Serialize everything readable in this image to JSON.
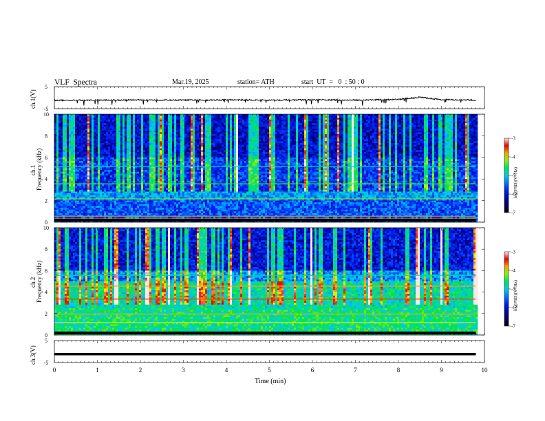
{
  "header": {
    "title": "VLF  Spectra",
    "date": "Mar.19, 2025",
    "station": "station= ATH",
    "start_ut": "start  UT  =   0  : 50 : 0"
  },
  "colors": {
    "low": "#000000",
    "blue": "#0000c0",
    "cyan": "#00c8ff",
    "green": "#00e000",
    "yellow": "#f0f000",
    "red": "#e00000",
    "pink": "#ffe0e0"
  },
  "chart_data": [
    {
      "type": "line",
      "ylabel": "ch.1(V)",
      "yticks": [
        "5",
        "-5"
      ],
      "ylim": [
        -5,
        5
      ],
      "x": [
        0,
        1,
        2,
        3,
        4,
        5,
        6,
        7,
        8,
        8.5,
        9,
        9.8
      ],
      "values": [
        -1.2,
        -1.1,
        -1.0,
        -1.1,
        -1.0,
        -1.1,
        -1.0,
        -1.1,
        -0.8,
        0.2,
        -0.9,
        -1.1
      ]
    },
    {
      "type": "heatmap",
      "ylabel_lines": [
        "ch.1",
        "Frequency (kHz)"
      ],
      "yticks": [
        "0",
        "2",
        "4",
        "6",
        "8",
        "10"
      ],
      "ylim": [
        0,
        10
      ],
      "colorbar": {
        "label": "log(PSD)(V²/Hz)",
        "ticks": [
          "-3",
          "-4",
          "-5",
          "-6",
          "-7"
        ],
        "range": [
          -7,
          -3
        ]
      }
    },
    {
      "type": "heatmap",
      "ylabel_lines": [
        "ch.2",
        "Frequency (kHz)"
      ],
      "yticks": [
        "0",
        "2",
        "4",
        "6",
        "8",
        "10"
      ],
      "ylim": [
        0,
        10
      ],
      "colorbar": {
        "label": "log(PSD)(V²/Hz)",
        "ticks": [
          "-3",
          "-4",
          "-5",
          "-6",
          "-7"
        ],
        "range": [
          -7,
          -3
        ]
      }
    },
    {
      "type": "line",
      "ylabel": "ch.3(V)",
      "yticks": [
        "5",
        "-5"
      ],
      "ylim": [
        -5,
        5
      ],
      "x": [
        0,
        9.8
      ],
      "values": [
        -1.2,
        -1.2
      ]
    }
  ],
  "xaxis": {
    "label": "Time  (min)",
    "ticks": [
      "0",
      "1",
      "2",
      "3",
      "4",
      "5",
      "6",
      "7",
      "8",
      "9",
      "10"
    ],
    "xlim": [
      0,
      10
    ]
  }
}
